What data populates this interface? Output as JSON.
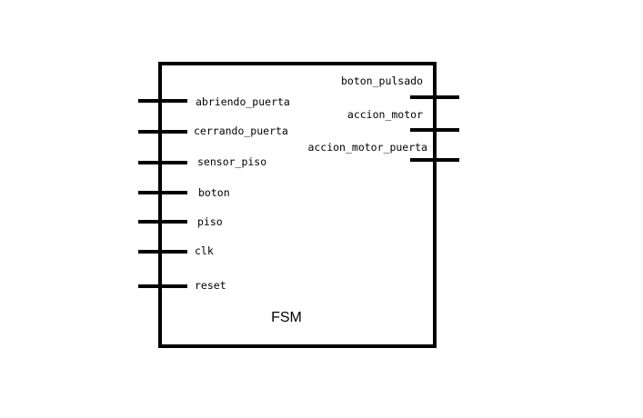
{
  "block": {
    "name": "FSM"
  },
  "inputs": [
    {
      "label": "abriendo_puerta"
    },
    {
      "label": "cerrando_puerta"
    },
    {
      "label": "sensor_piso"
    },
    {
      "label": "boton"
    },
    {
      "label": "piso"
    },
    {
      "label": "clk"
    },
    {
      "label": "reset"
    }
  ],
  "outputs": [
    {
      "label": "boton_pulsado"
    },
    {
      "label": "accion_motor"
    },
    {
      "label": "accion_motor_puerta"
    }
  ],
  "colors": {
    "stroke": "#000000",
    "background": "#ffffff"
  }
}
